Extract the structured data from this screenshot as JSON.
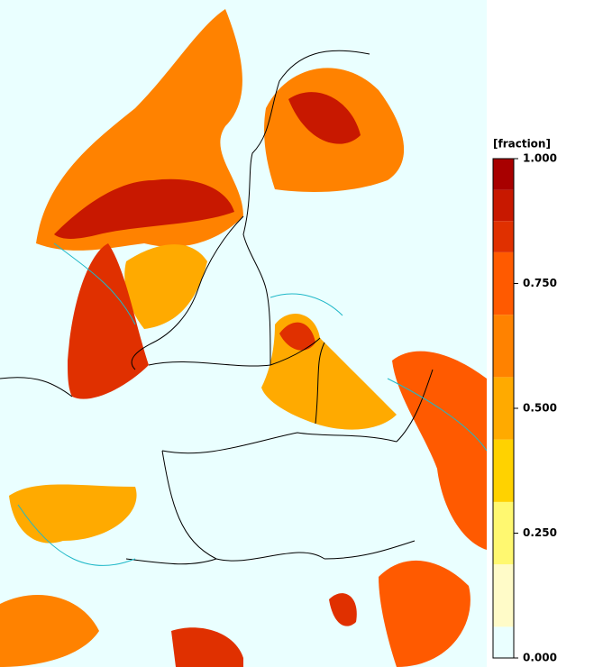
{
  "colorbar": {
    "title": "[fraction]",
    "bins": [
      0,
      0.0625,
      0.1875,
      0.3125,
      0.4375,
      0.5625,
      0.6875,
      0.8125,
      0.875,
      0.9375,
      1
    ],
    "colors": [
      "#eaffff",
      "#fffbc8",
      "#fff870",
      "#ffd200",
      "#ffaa00",
      "#ff8200",
      "#ff5a00",
      "#e03000",
      "#c81800",
      "#a80000"
    ],
    "ticks": [
      {
        "value": 0,
        "label": "0.000"
      },
      {
        "value": 0.25,
        "label": "0.250"
      },
      {
        "value": 0.5,
        "label": "0.500"
      },
      {
        "value": 0.75,
        "label": "0.750"
      },
      {
        "value": 1,
        "label": "1.000"
      }
    ]
  }
}
